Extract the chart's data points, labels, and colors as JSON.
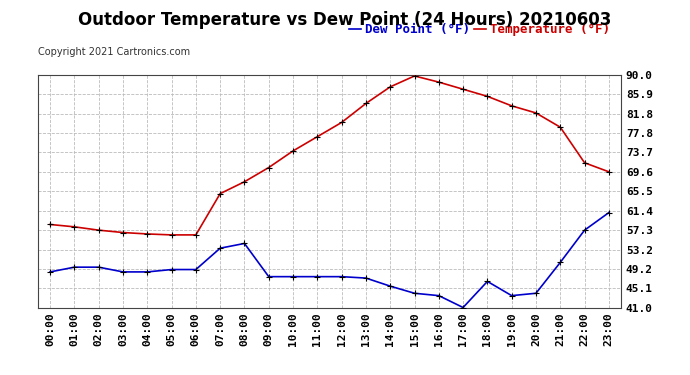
{
  "title": "Outdoor Temperature vs Dew Point (24 Hours) 20210603",
  "copyright": "Copyright 2021 Cartronics.com",
  "legend_dew": "Dew Point (°F)",
  "legend_temp": "Temperature (°F)",
  "x_labels": [
    "00:00",
    "01:00",
    "02:00",
    "03:00",
    "04:00",
    "05:00",
    "06:00",
    "07:00",
    "08:00",
    "09:00",
    "10:00",
    "11:00",
    "12:00",
    "13:00",
    "14:00",
    "15:00",
    "16:00",
    "17:00",
    "18:00",
    "19:00",
    "20:00",
    "21:00",
    "22:00",
    "23:00"
  ],
  "temperature": [
    58.5,
    58.0,
    57.3,
    56.8,
    56.5,
    56.3,
    56.3,
    65.0,
    67.5,
    70.5,
    74.0,
    77.0,
    80.0,
    84.0,
    87.5,
    89.8,
    88.5,
    87.0,
    85.5,
    83.5,
    82.0,
    79.0,
    71.5,
    69.6
  ],
  "dew_point": [
    48.5,
    49.5,
    49.5,
    48.5,
    48.5,
    49.0,
    49.0,
    53.5,
    54.5,
    47.5,
    47.5,
    47.5,
    47.5,
    47.2,
    45.5,
    44.0,
    43.5,
    41.0,
    46.5,
    43.5,
    44.0,
    50.5,
    57.3,
    61.0
  ],
  "ylim_min": 41.0,
  "ylim_max": 90.0,
  "y_ticks": [
    41.0,
    45.1,
    49.2,
    53.2,
    57.3,
    61.4,
    65.5,
    69.6,
    73.7,
    77.8,
    81.8,
    85.9,
    90.0
  ],
  "temp_color": "#cc0000",
  "dew_color": "#0000cc",
  "marker_color": "#000000",
  "bg_color": "#ffffff",
  "grid_color": "#bbbbbb",
  "title_fontsize": 12,
  "axis_fontsize": 8,
  "legend_fontsize": 9,
  "copyright_fontsize": 7
}
